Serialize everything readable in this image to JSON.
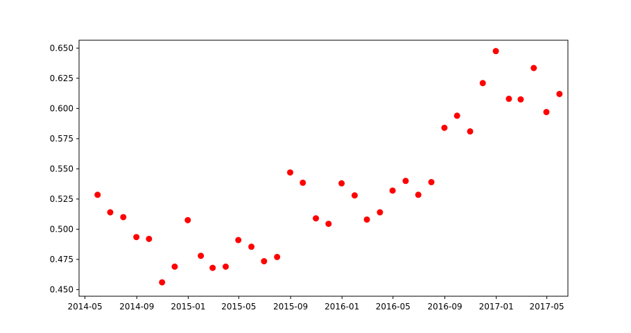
{
  "chart_data": {
    "type": "scatter",
    "title": "",
    "xlabel": "",
    "ylabel": "",
    "x_axis": "date",
    "xlim": [
      "2014-04-17",
      "2017-06-20"
    ],
    "ylim": [
      0.4445,
      0.6565
    ],
    "grid": false,
    "marker_color": "#ff0000",
    "x_ticks": [
      {
        "date": "2014-05-01",
        "label": "2014-05"
      },
      {
        "date": "2014-09-01",
        "label": "2014-09"
      },
      {
        "date": "2015-01-01",
        "label": "2015-01"
      },
      {
        "date": "2015-05-01",
        "label": "2015-05"
      },
      {
        "date": "2015-09-01",
        "label": "2015-09"
      },
      {
        "date": "2016-01-01",
        "label": "2016-01"
      },
      {
        "date": "2016-05-01",
        "label": "2016-05"
      },
      {
        "date": "2016-09-01",
        "label": "2016-09"
      },
      {
        "date": "2017-01-01",
        "label": "2017-01"
      },
      {
        "date": "2017-05-01",
        "label": "2017-05"
      }
    ],
    "y_ticks": [
      {
        "value": 0.45,
        "label": "0.450"
      },
      {
        "value": 0.475,
        "label": "0.475"
      },
      {
        "value": 0.5,
        "label": "0.500"
      },
      {
        "value": 0.525,
        "label": "0.525"
      },
      {
        "value": 0.55,
        "label": "0.550"
      },
      {
        "value": 0.575,
        "label": "0.575"
      },
      {
        "value": 0.6,
        "label": "0.600"
      },
      {
        "value": 0.625,
        "label": "0.625"
      },
      {
        "value": 0.65,
        "label": "0.650"
      }
    ],
    "points": [
      {
        "x": "2014-05-31",
        "y": 0.5285
      },
      {
        "x": "2014-06-30",
        "y": 0.514
      },
      {
        "x": "2014-07-31",
        "y": 0.51
      },
      {
        "x": "2014-08-31",
        "y": 0.4935
      },
      {
        "x": "2014-09-30",
        "y": 0.492
      },
      {
        "x": "2014-10-31",
        "y": 0.456
      },
      {
        "x": "2014-11-30",
        "y": 0.469
      },
      {
        "x": "2014-12-31",
        "y": 0.5075
      },
      {
        "x": "2015-01-31",
        "y": 0.478
      },
      {
        "x": "2015-02-28",
        "y": 0.468
      },
      {
        "x": "2015-03-31",
        "y": 0.469
      },
      {
        "x": "2015-04-30",
        "y": 0.491
      },
      {
        "x": "2015-05-31",
        "y": 0.4855
      },
      {
        "x": "2015-06-30",
        "y": 0.4735
      },
      {
        "x": "2015-07-31",
        "y": 0.477
      },
      {
        "x": "2015-08-31",
        "y": 0.547
      },
      {
        "x": "2015-09-30",
        "y": 0.5385
      },
      {
        "x": "2015-10-31",
        "y": 0.509
      },
      {
        "x": "2015-11-30",
        "y": 0.5045
      },
      {
        "x": "2015-12-31",
        "y": 0.538
      },
      {
        "x": "2016-01-31",
        "y": 0.528
      },
      {
        "x": "2016-02-29",
        "y": 0.508
      },
      {
        "x": "2016-03-31",
        "y": 0.514
      },
      {
        "x": "2016-04-30",
        "y": 0.532
      },
      {
        "x": "2016-05-31",
        "y": 0.54
      },
      {
        "x": "2016-06-30",
        "y": 0.5285
      },
      {
        "x": "2016-07-31",
        "y": 0.539
      },
      {
        "x": "2016-08-31",
        "y": 0.584
      },
      {
        "x": "2016-09-30",
        "y": 0.594
      },
      {
        "x": "2016-10-31",
        "y": 0.581
      },
      {
        "x": "2016-11-30",
        "y": 0.621
      },
      {
        "x": "2016-12-31",
        "y": 0.6475
      },
      {
        "x": "2017-01-31",
        "y": 0.608
      },
      {
        "x": "2017-02-28",
        "y": 0.6075
      },
      {
        "x": "2017-03-31",
        "y": 0.6335
      },
      {
        "x": "2017-04-30",
        "y": 0.597
      },
      {
        "x": "2017-05-31",
        "y": 0.612
      }
    ]
  }
}
